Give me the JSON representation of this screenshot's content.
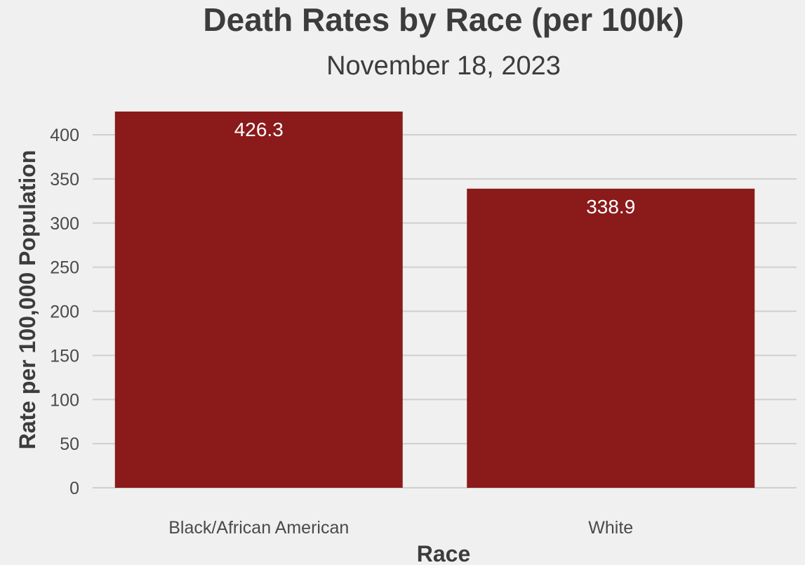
{
  "chart_data": {
    "type": "bar",
    "title": "Death Rates by Race (per 100k)",
    "subtitle": "November 18, 2023",
    "xlabel": "Race",
    "ylabel": "Rate per 100,000 Population",
    "categories": [
      "Black/African American",
      "White"
    ],
    "values": [
      426.3,
      338.9
    ],
    "value_labels": [
      "426.3",
      "338.9"
    ],
    "y_ticks": [
      0,
      50,
      100,
      150,
      200,
      250,
      300,
      350,
      400
    ],
    "ylim": [
      0,
      426.3
    ],
    "grid": "horizontal",
    "legend": "none",
    "bar_color": "#8b1a1a",
    "background_color": "#f0f0f0"
  }
}
